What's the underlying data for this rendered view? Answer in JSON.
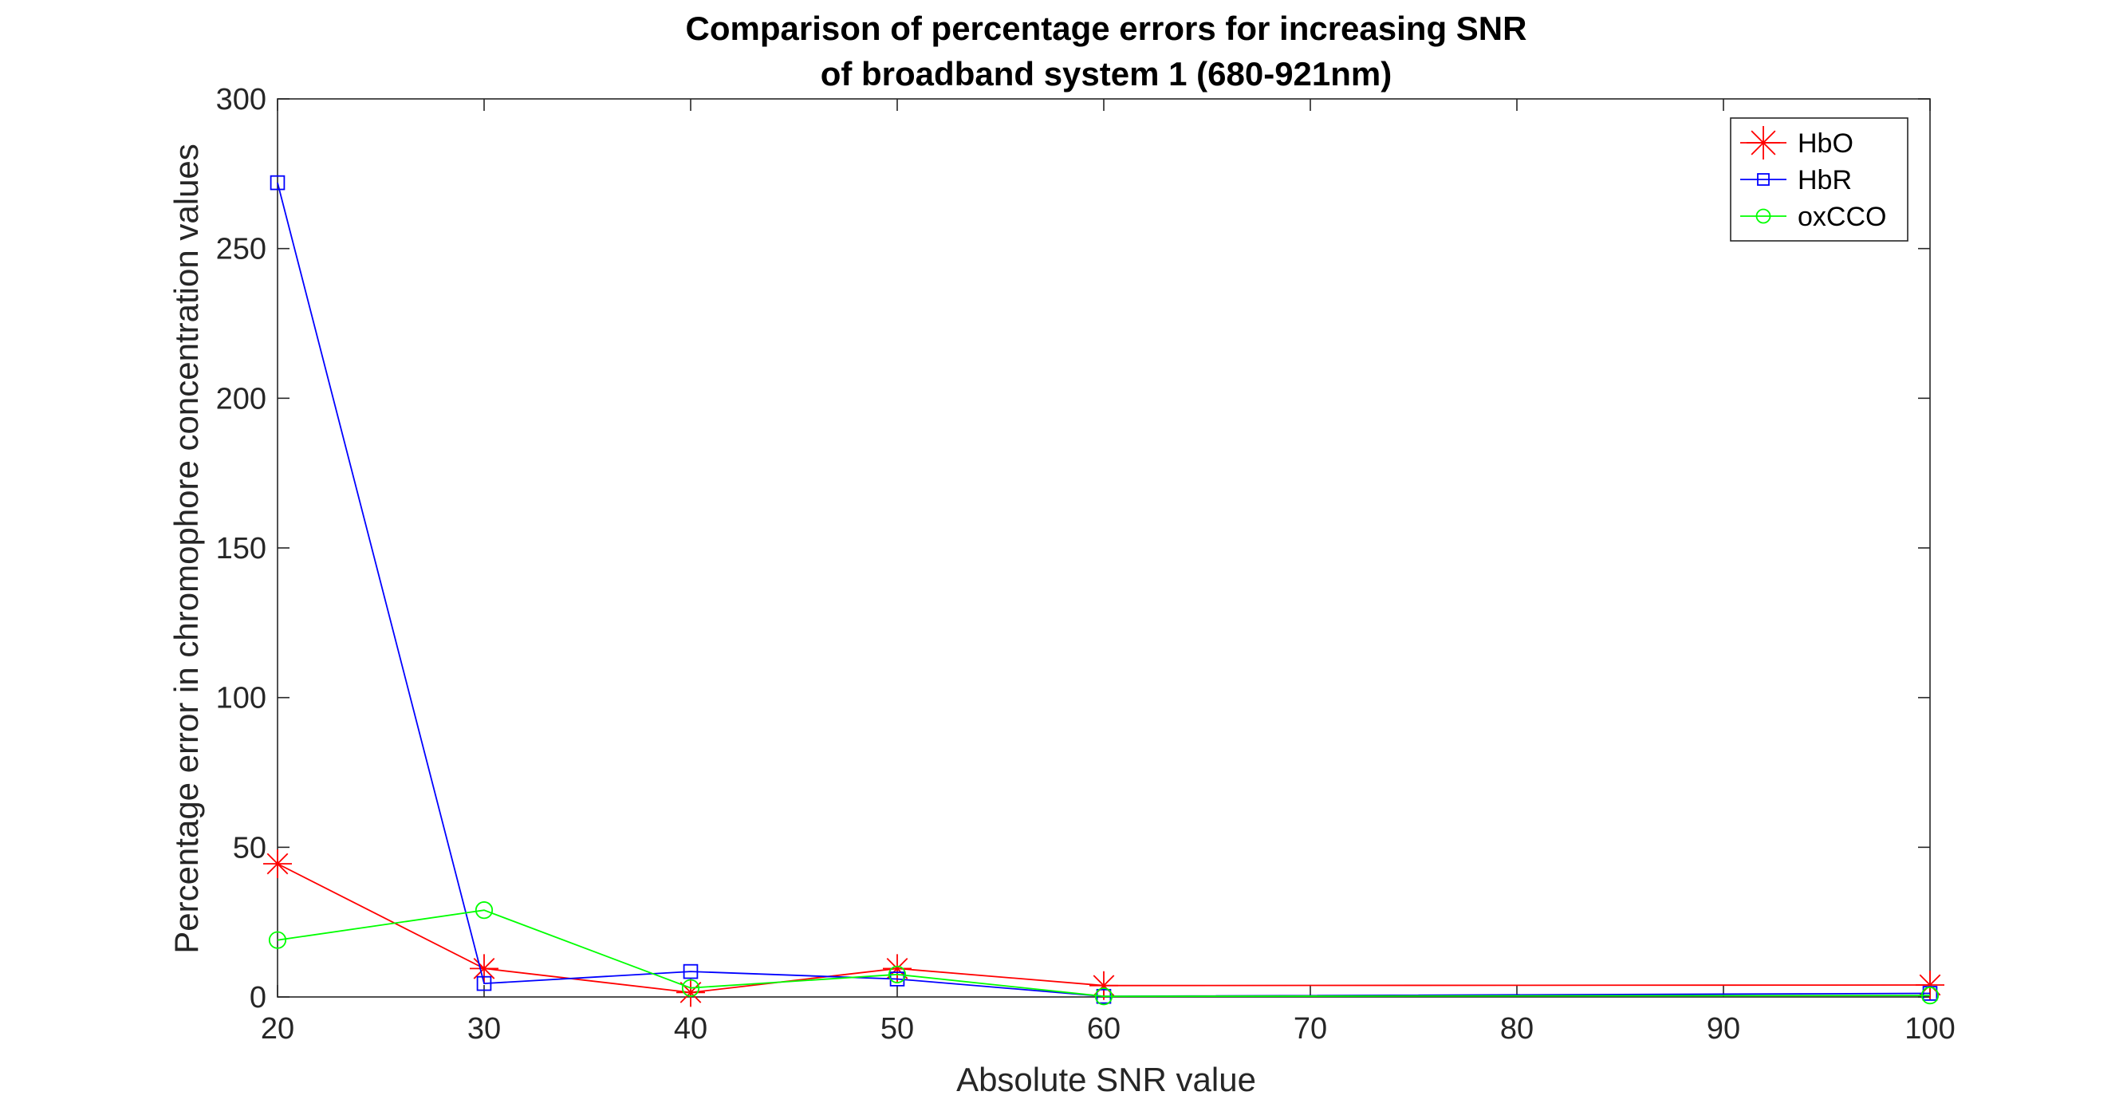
{
  "chart_data": {
    "type": "line",
    "title": [
      "Comparison of percentage errors for increasing SNR",
      "of broadband system 1 (680-921nm)"
    ],
    "xlabel": "Absolute SNR value",
    "ylabel": "Percentage error in chromophore concentration values",
    "xlim": [
      20,
      100
    ],
    "ylim": [
      0,
      300
    ],
    "xticks": [
      20,
      30,
      40,
      50,
      60,
      70,
      80,
      90,
      100
    ],
    "yticks": [
      0,
      50,
      100,
      150,
      200,
      250,
      300
    ],
    "grid": false,
    "box": true,
    "legend_position": "top-right",
    "series": [
      {
        "name": "HbO",
        "color": "#ff0000",
        "marker": "asterisk",
        "x": [
          20,
          30,
          40,
          50,
          60,
          100
        ],
        "y": [
          44.5,
          9.5,
          1.5,
          9.5,
          3.8,
          4.0
        ]
      },
      {
        "name": "HbR",
        "color": "#0000ff",
        "marker": "square",
        "x": [
          20,
          30,
          40,
          50,
          60,
          100
        ],
        "y": [
          272,
          4.5,
          8.5,
          6.0,
          0.2,
          1.2
        ]
      },
      {
        "name": "oxCCO",
        "color": "#00ff00",
        "marker": "circle",
        "x": [
          20,
          30,
          40,
          50,
          60,
          100
        ],
        "y": [
          19,
          29,
          3.0,
          7.5,
          0.2,
          0.5
        ]
      }
    ]
  }
}
